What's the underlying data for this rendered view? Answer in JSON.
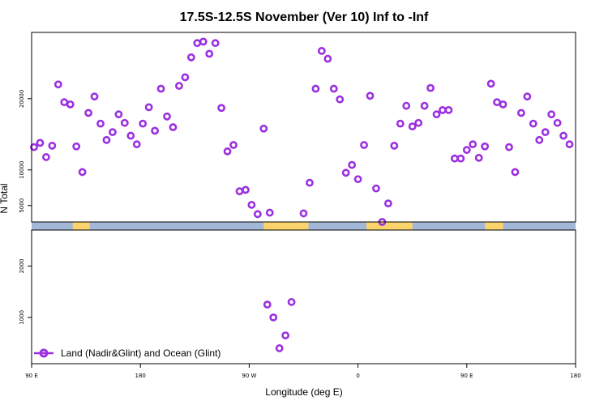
{
  "chart_data": {
    "type": "scatter",
    "title": "17.5S-12.5S November (Ver 10)   Inf to -Inf",
    "xlabel": "Longitude (deg E)",
    "ylabel": "N Total",
    "x_ticks": [
      {
        "value": 90,
        "label": "90 E"
      },
      {
        "value": 180,
        "label": "180"
      },
      {
        "value": 270,
        "label": "90 W"
      },
      {
        "value": 360,
        "label": "0"
      },
      {
        "value": 450,
        "label": "90 E"
      },
      {
        "value": 540,
        "label": "180"
      }
    ],
    "xlim": [
      90,
      540
    ],
    "y_ticks_upper": [
      5000,
      10000,
      20000
    ],
    "y_ticks_lower": [
      1000,
      2000
    ],
    "legend_label": "Land (Nadir&Glint) and Ocean (Glint)",
    "colors": {
      "marker": "#9b30e0",
      "ocean_strip": "#a3b7d8",
      "land_strip": "#fbd36c",
      "frame": "#000000"
    },
    "land_segments": [
      [
        124,
        138
      ],
      [
        282,
        319
      ],
      [
        367,
        405
      ],
      [
        465,
        480
      ]
    ],
    "series": [
      {
        "name": "Land (Nadir&Glint) and Ocean (Glint)",
        "points": [
          [
            92,
            13200
          ],
          [
            97,
            13800
          ],
          [
            102,
            11800
          ],
          [
            107,
            13400
          ],
          [
            112,
            22000
          ],
          [
            117,
            19500
          ],
          [
            122,
            19200
          ],
          [
            127,
            13300
          ],
          [
            132,
            9700
          ],
          [
            137,
            18000
          ],
          [
            142,
            20300
          ],
          [
            147,
            16500
          ],
          [
            152,
            14200
          ],
          [
            157,
            15300
          ],
          [
            162,
            17800
          ],
          [
            167,
            16600
          ],
          [
            172,
            14800
          ],
          [
            177,
            13600
          ],
          [
            182,
            16500
          ],
          [
            187,
            18800
          ],
          [
            192,
            15500
          ],
          [
            197,
            21400
          ],
          [
            202,
            17500
          ],
          [
            207,
            16000
          ],
          [
            212,
            21800
          ],
          [
            217,
            23000
          ],
          [
            222,
            25800
          ],
          [
            227,
            27800
          ],
          [
            232,
            28000
          ],
          [
            237,
            26300
          ],
          [
            242,
            27800
          ],
          [
            247,
            18700
          ],
          [
            252,
            12600
          ],
          [
            257,
            13500
          ],
          [
            262,
            7000
          ],
          [
            267,
            7200
          ],
          [
            272,
            5100
          ],
          [
            277,
            3800
          ],
          [
            287,
            4000
          ],
          [
            285,
            1250
          ],
          [
            290,
            1000
          ],
          [
            295,
            400
          ],
          [
            300,
            650
          ],
          [
            305,
            1300
          ],
          [
            282,
            15800
          ],
          [
            315,
            3900
          ],
          [
            320,
            8200
          ],
          [
            325,
            21400
          ],
          [
            330,
            26700
          ],
          [
            335,
            25600
          ],
          [
            340,
            21400
          ],
          [
            345,
            19900
          ],
          [
            350,
            9600
          ],
          [
            355,
            10700
          ],
          [
            360,
            8700
          ],
          [
            365,
            13500
          ],
          [
            370,
            20400
          ],
          [
            375,
            7400
          ],
          [
            380,
            2700
          ],
          [
            385,
            5300
          ],
          [
            390,
            13400
          ],
          [
            395,
            16500
          ],
          [
            400,
            19000
          ],
          [
            405,
            16100
          ],
          [
            410,
            16600
          ],
          [
            415,
            19000
          ],
          [
            420,
            21500
          ],
          [
            425,
            17800
          ],
          [
            430,
            18400
          ],
          [
            435,
            18400
          ],
          [
            440,
            11600
          ],
          [
            445,
            11600
          ],
          [
            450,
            12800
          ],
          [
            455,
            13600
          ],
          [
            460,
            11700
          ],
          [
            465,
            13300
          ],
          [
            470,
            22100
          ],
          [
            475,
            19500
          ],
          [
            480,
            19200
          ],
          [
            485,
            13200
          ],
          [
            490,
            9700
          ],
          [
            495,
            18000
          ],
          [
            500,
            20300
          ],
          [
            505,
            16500
          ],
          [
            510,
            14200
          ],
          [
            515,
            15300
          ],
          [
            520,
            17800
          ],
          [
            525,
            16600
          ],
          [
            530,
            14800
          ],
          [
            535,
            13600
          ]
        ]
      }
    ]
  }
}
